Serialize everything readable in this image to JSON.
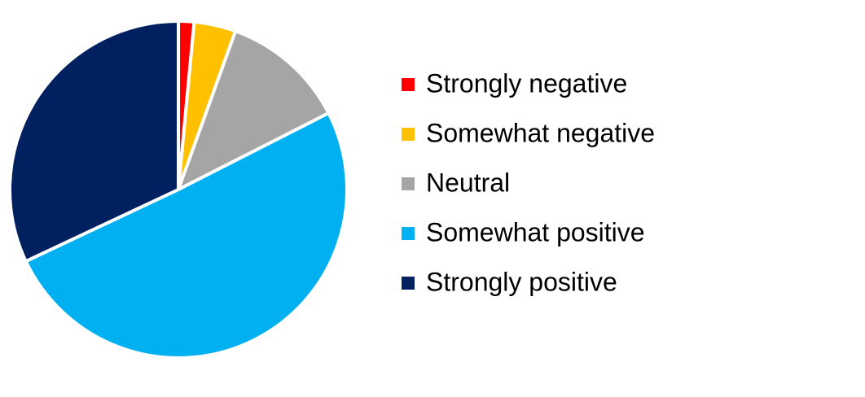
{
  "chart_data": {
    "type": "pie",
    "categories": [
      "Strongly negative",
      "Somewhat negative",
      "Neutral",
      "Somewhat positive",
      "Strongly positive"
    ],
    "values": [
      1.5,
      4,
      12,
      50.5,
      32
    ],
    "colors": [
      "#ff0000",
      "#ffc000",
      "#a5a5a5",
      "#00b0f0",
      "#002060"
    ],
    "legend": "right"
  }
}
